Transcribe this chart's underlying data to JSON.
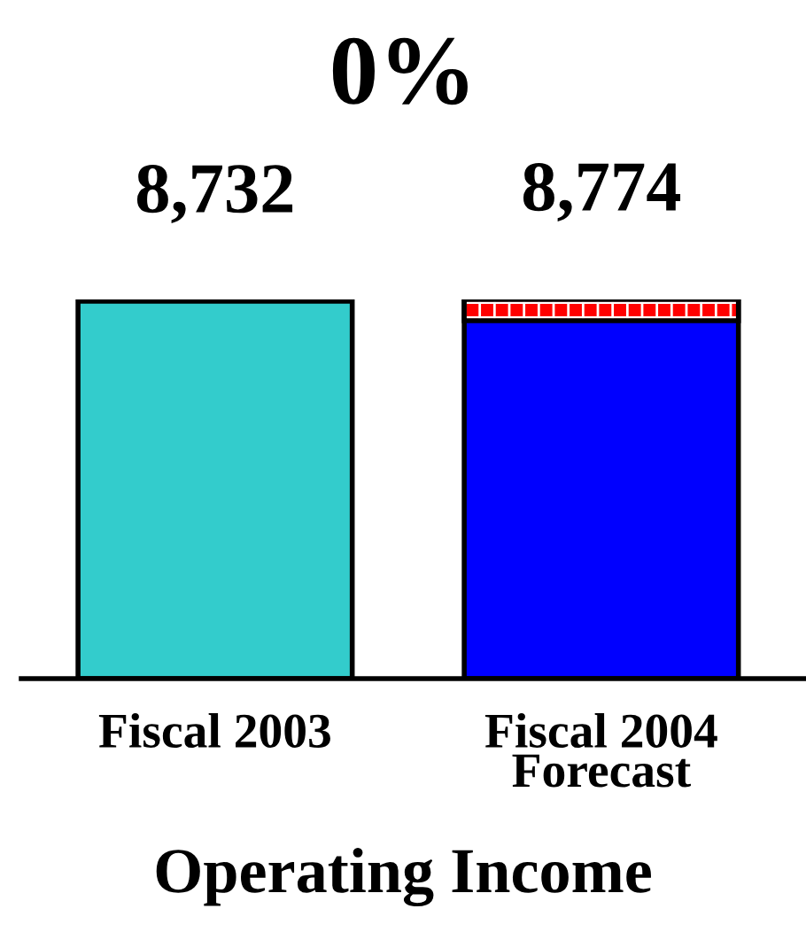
{
  "chart_data": {
    "type": "bar",
    "title": "0%",
    "xlabel": "Operating Income",
    "categories": [
      "Fiscal 2003",
      "Fiscal 2004\nForecast"
    ],
    "values": [
      8732,
      8774
    ],
    "colors": [
      "#33cccc",
      "#0000ff"
    ],
    "value_labels": [
      "8,732",
      "8,774"
    ],
    "grid": false,
    "legend": false,
    "tick_labels": "x"
  }
}
